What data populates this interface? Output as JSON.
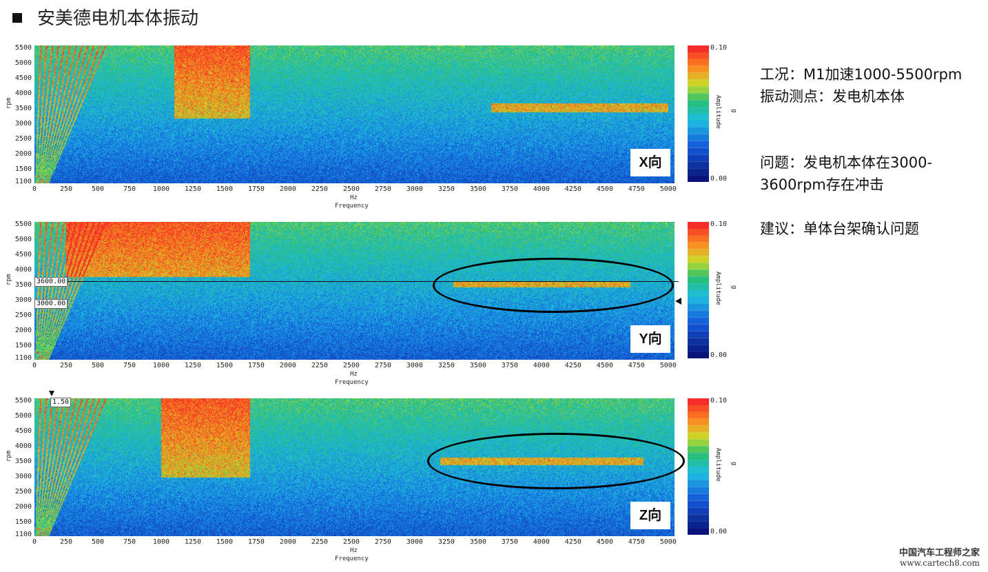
{
  "title": "安美德电机本体振动",
  "notes": {
    "line1": "工况：M1加速1000-5500rpm",
    "line2": "振动测点：发电机本体",
    "line3": "问题：发电机本体在3000-",
    "line4": "3600rpm存在冲击",
    "line5": "建议：单体台架确认问题"
  },
  "footer": {
    "site_name": "中国汽车工程师之家",
    "url": "www.cartech8.com"
  },
  "colors": {
    "low": "#0a1f8c",
    "mid": "#27c4e0",
    "high": "#ff3b30"
  },
  "chart_data": [
    {
      "type": "heatmap",
      "direction_label": "X向",
      "xlabel": "Hz",
      "xlabel2": "Frequency",
      "ylabel": "rpm",
      "xlim": [
        0,
        5050
      ],
      "ylim": [
        1050,
        5600
      ],
      "x_ticks": [
        "0",
        "250",
        "500",
        "750",
        "1000",
        "1250",
        "1500",
        "1750",
        "2000",
        "2250",
        "2500",
        "2750",
        "3000",
        "3250",
        "3500",
        "3750",
        "4000",
        "4250",
        "4500",
        "4750",
        "5000"
      ],
      "y_ticks": [
        "5500",
        "5000",
        "4500",
        "4000",
        "3500",
        "3000",
        "2500",
        "2000",
        "1500",
        "1100"
      ],
      "colorbar": {
        "label": "Amplitude",
        "unit": "g",
        "max_label": "0.10",
        "min_label": "0.00"
      },
      "hotspots": [
        {
          "x0": 1100,
          "x1": 1700,
          "y0": 3200,
          "y1": 5600
        },
        {
          "x0": 3600,
          "x1": 5000,
          "y0": 3400,
          "y1": 3700
        }
      ]
    },
    {
      "type": "heatmap",
      "direction_label": "Y向",
      "xlabel": "Hz",
      "xlabel2": "Frequency",
      "ylabel": "rpm",
      "xlim": [
        0,
        5050
      ],
      "ylim": [
        1050,
        5600
      ],
      "x_ticks": [
        "0",
        "250",
        "500",
        "750",
        "1000",
        "1250",
        "1500",
        "1750",
        "2000",
        "2250",
        "2500",
        "2750",
        "3000",
        "3250",
        "3500",
        "3750",
        "4000",
        "4250",
        "4500",
        "4750",
        "5000"
      ],
      "y_ticks": [
        "5500",
        "5000",
        "4500",
        "4000",
        "3500",
        "3000",
        "2500",
        "2000",
        "1500",
        "1100"
      ],
      "colorbar": {
        "label": "Amplitude",
        "unit": "g",
        "max_label": "0.10",
        "min_label": "0.00"
      },
      "cursor_rpm": [
        {
          "label": "3600.00",
          "value": 3600
        },
        {
          "label": "3000.00",
          "value": 3000
        }
      ],
      "highlight_region": {
        "x0": 3150,
        "x1": 5000,
        "y0": 3000,
        "y1": 4300
      },
      "hotspots": [
        {
          "x0": 250,
          "x1": 1700,
          "y0": 3800,
          "y1": 5600
        },
        {
          "x0": 3300,
          "x1": 4700,
          "y0": 3450,
          "y1": 3650
        }
      ]
    },
    {
      "type": "heatmap",
      "direction_label": "Z向",
      "xlabel": "Hz",
      "xlabel2": "Frequency",
      "ylabel": "rpm",
      "xlim": [
        0,
        5050
      ],
      "ylim": [
        1050,
        5600
      ],
      "x_ticks": [
        "0",
        "250",
        "500",
        "750",
        "1000",
        "1250",
        "1500",
        "1750",
        "2000",
        "2250",
        "2500",
        "2750",
        "3000",
        "3250",
        "3500",
        "3750",
        "4000",
        "4250",
        "4500",
        "4750",
        "5000"
      ],
      "y_ticks": [
        "5500",
        "5000",
        "4500",
        "4000",
        "3500",
        "3000",
        "2500",
        "2000",
        "1500",
        "1100"
      ],
      "colorbar": {
        "label": "Amplitude",
        "unit": "g",
        "max_label": "0.10",
        "min_label": "0.00"
      },
      "order_cursor": {
        "label": "1.50"
      },
      "highlight_region": {
        "x0": 3100,
        "x1": 5050,
        "y0": 3000,
        "y1": 4300
      },
      "hotspots": [
        {
          "x0": 1000,
          "x1": 1700,
          "y0": 3000,
          "y1": 5600
        },
        {
          "x0": 3200,
          "x1": 4800,
          "y0": 3400,
          "y1": 3650
        }
      ]
    }
  ]
}
